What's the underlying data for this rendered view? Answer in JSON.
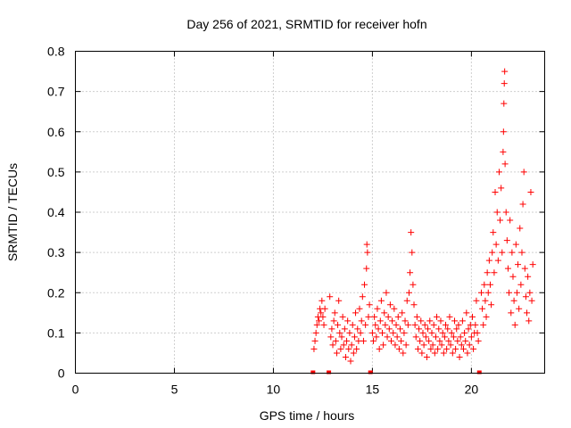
{
  "chart_data": {
    "type": "scatter",
    "title": "Day 256 of 2021, SRMTID for receiver hofn",
    "xlabel": "GPS time / hours",
    "ylabel": "SRMTID / TECUs",
    "xlim": [
      0,
      23.7
    ],
    "ylim": [
      0,
      0.8
    ],
    "xticks": [
      0,
      5,
      10,
      15,
      20
    ],
    "xtick_labels": [
      "0",
      "5",
      "10",
      "15",
      "20"
    ],
    "yticks": [
      0,
      0.1,
      0.2,
      0.3,
      0.4,
      0.5,
      0.6,
      0.7,
      0.8
    ],
    "ytick_labels": [
      "0",
      "0.1",
      "0.2",
      "0.3",
      "0.4",
      "0.5",
      "0.6",
      "0.7",
      "0.8"
    ],
    "grid": true,
    "marker": "+",
    "color": "#ff0000",
    "gap_markers_x": [
      12.0,
      12.8,
      14.9,
      20.4
    ],
    "series": [
      {
        "name": "SRMTID",
        "points": [
          [
            12.05,
            0.06
          ],
          [
            12.1,
            0.08
          ],
          [
            12.15,
            0.1
          ],
          [
            12.2,
            0.12
          ],
          [
            12.25,
            0.14
          ],
          [
            12.3,
            0.13
          ],
          [
            12.35,
            0.16
          ],
          [
            12.4,
            0.15
          ],
          [
            12.45,
            0.18
          ],
          [
            12.5,
            0.14
          ],
          [
            12.55,
            0.12
          ],
          [
            12.6,
            0.16
          ],
          [
            12.85,
            0.19
          ],
          [
            12.9,
            0.09
          ],
          [
            12.95,
            0.11
          ],
          [
            13.0,
            0.07
          ],
          [
            13.05,
            0.13
          ],
          [
            13.1,
            0.15
          ],
          [
            13.15,
            0.08
          ],
          [
            13.2,
            0.05
          ],
          [
            13.25,
            0.12
          ],
          [
            13.3,
            0.18
          ],
          [
            13.35,
            0.1
          ],
          [
            13.4,
            0.06
          ],
          [
            13.45,
            0.09
          ],
          [
            13.5,
            0.14
          ],
          [
            13.55,
            0.07
          ],
          [
            13.6,
            0.11
          ],
          [
            13.65,
            0.04
          ],
          [
            13.7,
            0.08
          ],
          [
            13.75,
            0.13
          ],
          [
            13.8,
            0.06
          ],
          [
            13.85,
            0.1
          ],
          [
            13.9,
            0.03
          ],
          [
            13.95,
            0.07
          ],
          [
            14.0,
            0.12
          ],
          [
            14.05,
            0.05
          ],
          [
            14.1,
            0.09
          ],
          [
            14.15,
            0.15
          ],
          [
            14.2,
            0.06
          ],
          [
            14.25,
            0.11
          ],
          [
            14.3,
            0.08
          ],
          [
            14.35,
            0.16
          ],
          [
            14.4,
            0.1
          ],
          [
            14.45,
            0.13
          ],
          [
            14.5,
            0.19
          ],
          [
            14.55,
            0.08
          ],
          [
            14.6,
            0.22
          ],
          [
            14.65,
            0.12
          ],
          [
            14.7,
            0.26
          ],
          [
            14.72,
            0.32
          ],
          [
            14.75,
            0.3
          ],
          [
            14.8,
            0.14
          ],
          [
            14.85,
            0.17
          ],
          [
            15.0,
            0.1
          ],
          [
            15.05,
            0.08
          ],
          [
            15.1,
            0.14
          ],
          [
            15.15,
            0.12
          ],
          [
            15.2,
            0.09
          ],
          [
            15.25,
            0.16
          ],
          [
            15.3,
            0.11
          ],
          [
            15.35,
            0.06
          ],
          [
            15.4,
            0.13
          ],
          [
            15.45,
            0.18
          ],
          [
            15.5,
            0.1
          ],
          [
            15.55,
            0.07
          ],
          [
            15.6,
            0.15
          ],
          [
            15.65,
            0.12
          ],
          [
            15.7,
            0.2
          ],
          [
            15.75,
            0.09
          ],
          [
            15.8,
            0.14
          ],
          [
            15.85,
            0.11
          ],
          [
            15.9,
            0.17
          ],
          [
            15.95,
            0.08
          ],
          [
            16.0,
            0.13
          ],
          [
            16.05,
            0.1
          ],
          [
            16.1,
            0.16
          ],
          [
            16.15,
            0.07
          ],
          [
            16.2,
            0.12
          ],
          [
            16.25,
            0.09
          ],
          [
            16.3,
            0.14
          ],
          [
            16.35,
            0.06
          ],
          [
            16.4,
            0.11
          ],
          [
            16.45,
            0.08
          ],
          [
            16.5,
            0.15
          ],
          [
            16.55,
            0.05
          ],
          [
            16.6,
            0.1
          ],
          [
            16.65,
            0.13
          ],
          [
            16.7,
            0.07
          ],
          [
            16.75,
            0.18
          ],
          [
            16.8,
            0.12
          ],
          [
            16.85,
            0.2
          ],
          [
            16.9,
            0.25
          ],
          [
            16.95,
            0.35
          ],
          [
            17.0,
            0.3
          ],
          [
            17.05,
            0.22
          ],
          [
            17.1,
            0.17
          ],
          [
            17.15,
            0.12
          ],
          [
            17.2,
            0.09
          ],
          [
            17.25,
            0.14
          ],
          [
            17.3,
            0.06
          ],
          [
            17.35,
            0.11
          ],
          [
            17.4,
            0.08
          ],
          [
            17.45,
            0.13
          ],
          [
            17.5,
            0.05
          ],
          [
            17.55,
            0.1
          ],
          [
            17.6,
            0.07
          ],
          [
            17.65,
            0.12
          ],
          [
            17.7,
            0.09
          ],
          [
            17.75,
            0.04
          ],
          [
            17.8,
            0.11
          ],
          [
            17.85,
            0.08
          ],
          [
            17.9,
            0.13
          ],
          [
            17.95,
            0.06
          ],
          [
            18.0,
            0.1
          ],
          [
            18.05,
            0.07
          ],
          [
            18.1,
            0.12
          ],
          [
            18.15,
            0.05
          ],
          [
            18.2,
            0.09
          ],
          [
            18.25,
            0.14
          ],
          [
            18.3,
            0.06
          ],
          [
            18.35,
            0.11
          ],
          [
            18.4,
            0.08
          ],
          [
            18.45,
            0.13
          ],
          [
            18.5,
            0.07
          ],
          [
            18.55,
            0.1
          ],
          [
            18.6,
            0.05
          ],
          [
            18.65,
            0.09
          ],
          [
            18.7,
            0.12
          ],
          [
            18.75,
            0.06
          ],
          [
            18.8,
            0.11
          ],
          [
            18.85,
            0.08
          ],
          [
            18.9,
            0.14
          ],
          [
            18.95,
            0.07
          ],
          [
            19.0,
            0.1
          ],
          [
            19.05,
            0.05
          ],
          [
            19.1,
            0.09
          ],
          [
            19.15,
            0.13
          ],
          [
            19.2,
            0.06
          ],
          [
            19.25,
            0.11
          ],
          [
            19.3,
            0.08
          ],
          [
            19.35,
            0.12
          ],
          [
            19.4,
            0.04
          ],
          [
            19.45,
            0.09
          ],
          [
            19.5,
            0.07
          ],
          [
            19.55,
            0.13
          ],
          [
            19.6,
            0.06
          ],
          [
            19.65,
            0.1
          ],
          [
            19.7,
            0.08
          ],
          [
            19.75,
            0.15
          ],
          [
            19.8,
            0.05
          ],
          [
            19.85,
            0.11
          ],
          [
            19.9,
            0.07
          ],
          [
            19.95,
            0.12
          ],
          [
            20.0,
            0.09
          ],
          [
            20.05,
            0.14
          ],
          [
            20.1,
            0.06
          ],
          [
            20.15,
            0.1
          ],
          [
            20.2,
            0.12
          ],
          [
            20.25,
            0.18
          ],
          [
            20.3,
            0.1
          ],
          [
            20.35,
            0.08
          ],
          [
            20.5,
            0.2
          ],
          [
            20.55,
            0.16
          ],
          [
            20.6,
            0.12
          ],
          [
            20.65,
            0.22
          ],
          [
            20.7,
            0.18
          ],
          [
            20.75,
            0.14
          ],
          [
            20.8,
            0.25
          ],
          [
            20.85,
            0.2
          ],
          [
            20.9,
            0.28
          ],
          [
            20.95,
            0.22
          ],
          [
            21.0,
            0.17
          ],
          [
            21.05,
            0.3
          ],
          [
            21.1,
            0.35
          ],
          [
            21.15,
            0.25
          ],
          [
            21.2,
            0.45
          ],
          [
            21.25,
            0.32
          ],
          [
            21.3,
            0.4
          ],
          [
            21.35,
            0.28
          ],
          [
            21.4,
            0.5
          ],
          [
            21.45,
            0.38
          ],
          [
            21.5,
            0.46
          ],
          [
            21.55,
            0.3
          ],
          [
            21.6,
            0.55
          ],
          [
            21.62,
            0.6
          ],
          [
            21.64,
            0.67
          ],
          [
            21.66,
            0.72
          ],
          [
            21.68,
            0.75
          ],
          [
            21.7,
            0.52
          ],
          [
            21.75,
            0.4
          ],
          [
            21.8,
            0.33
          ],
          [
            21.85,
            0.26
          ],
          [
            21.9,
            0.2
          ],
          [
            21.95,
            0.38
          ],
          [
            22.0,
            0.15
          ],
          [
            22.05,
            0.3
          ],
          [
            22.1,
            0.24
          ],
          [
            22.15,
            0.18
          ],
          [
            22.2,
            0.12
          ],
          [
            22.25,
            0.32
          ],
          [
            22.3,
            0.2
          ],
          [
            22.35,
            0.27
          ],
          [
            22.4,
            0.16
          ],
          [
            22.45,
            0.36
          ],
          [
            22.5,
            0.22
          ],
          [
            22.55,
            0.3
          ],
          [
            22.6,
            0.42
          ],
          [
            22.65,
            0.5
          ],
          [
            22.7,
            0.26
          ],
          [
            22.75,
            0.19
          ],
          [
            22.8,
            0.15
          ],
          [
            22.85,
            0.24
          ],
          [
            22.9,
            0.13
          ],
          [
            22.95,
            0.2
          ],
          [
            23.0,
            0.45
          ],
          [
            23.05,
            0.18
          ],
          [
            23.1,
            0.27
          ]
        ]
      }
    ]
  }
}
